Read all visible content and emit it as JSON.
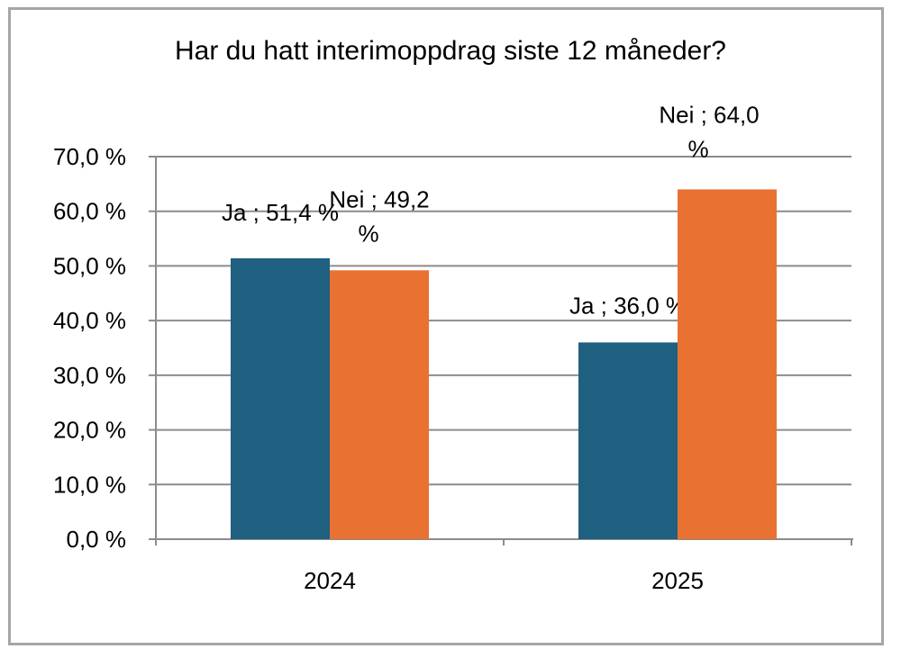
{
  "chart_data": {
    "type": "bar",
    "title": "Har du hatt interimoppdrag siste 12 måneder?",
    "categories": [
      "2024",
      "2025"
    ],
    "series": [
      {
        "name": "Ja",
        "values": [
          51.4,
          36.0
        ],
        "color": "#1f5f7f"
      },
      {
        "name": "Nei",
        "values": [
          49.2,
          64.0
        ],
        "color": "#e97132"
      }
    ],
    "ylim": [
      0,
      70
    ],
    "yticks": [
      0,
      10,
      20,
      30,
      40,
      50,
      60,
      70
    ],
    "ytick_labels": [
      "0,0 %",
      "10,0 %",
      "20,0 %",
      "30,0 %",
      "40,0 %",
      "50,0 %",
      "60,0 %",
      "70,0 %"
    ],
    "data_labels": [
      [
        "Ja ; 51,4 %",
        "Ja ; 36,0 %"
      ],
      [
        [
          "Nei ; 49,2",
          "%"
        ],
        [
          "Nei ; 64,0",
          "%"
        ]
      ]
    ],
    "grid": true,
    "legend": "none"
  }
}
